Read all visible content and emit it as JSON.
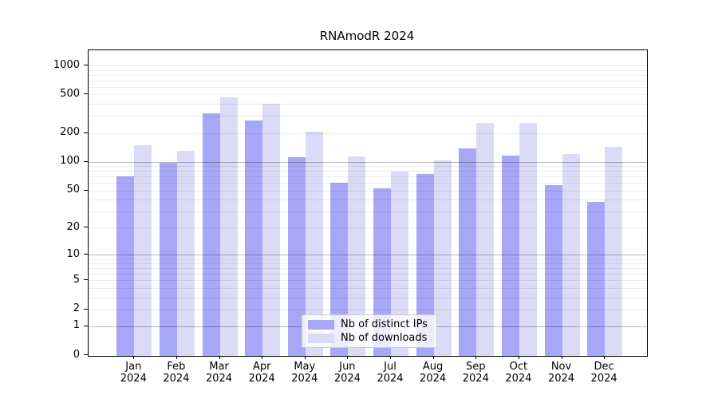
{
  "title": "RNAmodR 2024",
  "chart_data": {
    "type": "bar",
    "title": "RNAmodR 2024",
    "xlabel": "",
    "ylabel": "",
    "yscale": "log1p",
    "ylim": [
      0,
      1400
    ],
    "ytick_labels": [
      "0",
      "1",
      "2",
      "5",
      "10",
      "20",
      "50",
      "100",
      "200",
      "500",
      "1000"
    ],
    "yticks": [
      0,
      1,
      2,
      5,
      10,
      20,
      50,
      100,
      200,
      500,
      1000
    ],
    "grid": "horizontal log grid, minor + major lines",
    "legend_position": "lower center inside plot",
    "categories": [
      "Jan",
      "Feb",
      "Mar",
      "Apr",
      "May",
      "Jun",
      "Jul",
      "Aug",
      "Sep",
      "Oct",
      "Nov",
      "Dec"
    ],
    "year_label": "2024",
    "series": [
      {
        "name": "Nb of distinct IPs",
        "color": "#a7a7f7",
        "values": [
          70,
          97,
          320,
          271,
          111,
          60,
          53,
          74,
          137,
          117,
          57,
          38
        ]
      },
      {
        "name": "Nb of downloads",
        "color": "#dbdbf8",
        "values": [
          148,
          129,
          472,
          399,
          206,
          113,
          79,
          103,
          255,
          255,
          121,
          142
        ]
      }
    ]
  }
}
